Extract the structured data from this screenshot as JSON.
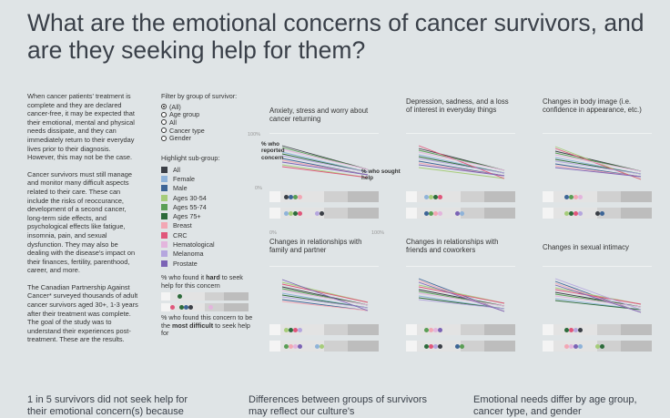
{
  "title": "What are the emotional concerns of cancer survivors, and are they seeking help for them?",
  "intro": [
    "When cancer patients' treatment is complete and they are declared cancer-free, it may be expected that their emotional, mental and physical needs dissipate, and they can immediately return to their everyday lives prior to their diagnosis. However, this may not be the case.",
    "Cancer survivors must still manage and monitor many difficult aspects related to their care. These can include the risks of reoccurance, development of a second cancer, long-term side effects, and psychological effects like fatigue, insomnia, pain, and sexual dysfunction. They may also be dealing with the disease's impact on their finances, fertility, parenthood, career, and more.",
    "The Canadian Partnership Against Cancer* surveyed thousands of adult cancer survivors aged 30+, 1-3 years after their treatment was complete. The goal of the study was to understand their experiences post-treatment. These are the results."
  ],
  "filter": {
    "label": "Filter by group of survivor:",
    "options": [
      "(All)",
      "Age group",
      "All",
      "Cancer type",
      "Gender"
    ],
    "selected_index": 0
  },
  "highlight": {
    "label": "Highlight sub-group:",
    "groups": [
      {
        "label": "All",
        "color": "#3b3f46"
      },
      {
        "label": "Female",
        "color": "#8fb3d9"
      },
      {
        "label": "Male",
        "color": "#3d6596"
      },
      {
        "label": "Ages 30-54",
        "color": "#a6cc7a"
      },
      {
        "label": "Ages 55-74",
        "color": "#5a9e55"
      },
      {
        "label": "Ages 75+",
        "color": "#2d6b3b"
      },
      {
        "label": "Breast",
        "color": "#f2a7b4"
      },
      {
        "label": "CRC",
        "color": "#e0567a"
      },
      {
        "label": "Hematological",
        "color": "#e3b5dd"
      },
      {
        "label": "Melanoma",
        "color": "#b5a6de"
      },
      {
        "label": "Prostate",
        "color": "#7b63b5"
      }
    ]
  },
  "legend2": {
    "hard_text_before": "% who found it ",
    "hard_bold": "hard",
    "hard_text_after": " to seek help for this concern",
    "difficult_text_before": "% who found this concern to be the ",
    "difficult_bold": "most difficult",
    "difficult_text_after": " to seek help for"
  },
  "axis": {
    "y_top": "100%",
    "y_bottom": "0%",
    "x_left": "0%",
    "x_right": "100%"
  },
  "annotations": {
    "reported": "% who reported concern",
    "sought": "% who sought help"
  },
  "panels": [
    {
      "title": "Anxiety, stress and worry about cancer returning"
    },
    {
      "title": "Depression, sadness, and a loss of interest in everyday things"
    },
    {
      "title": "Changes in body image (i.e. confidence in appearance, etc.)"
    },
    {
      "title": "Changes in relationships with family and partner"
    },
    {
      "title": "Changes in relationships with friends and coworkers"
    },
    {
      "title": "Changes in sexual intimacy"
    }
  ],
  "bottom": [
    "1 in 5 survivors did not seek help for their emotional concern(s) because",
    "Differences between groups of survivors may reflect our culture's",
    "Emotional needs differ by age group, cancer type, and gender"
  ]
}
